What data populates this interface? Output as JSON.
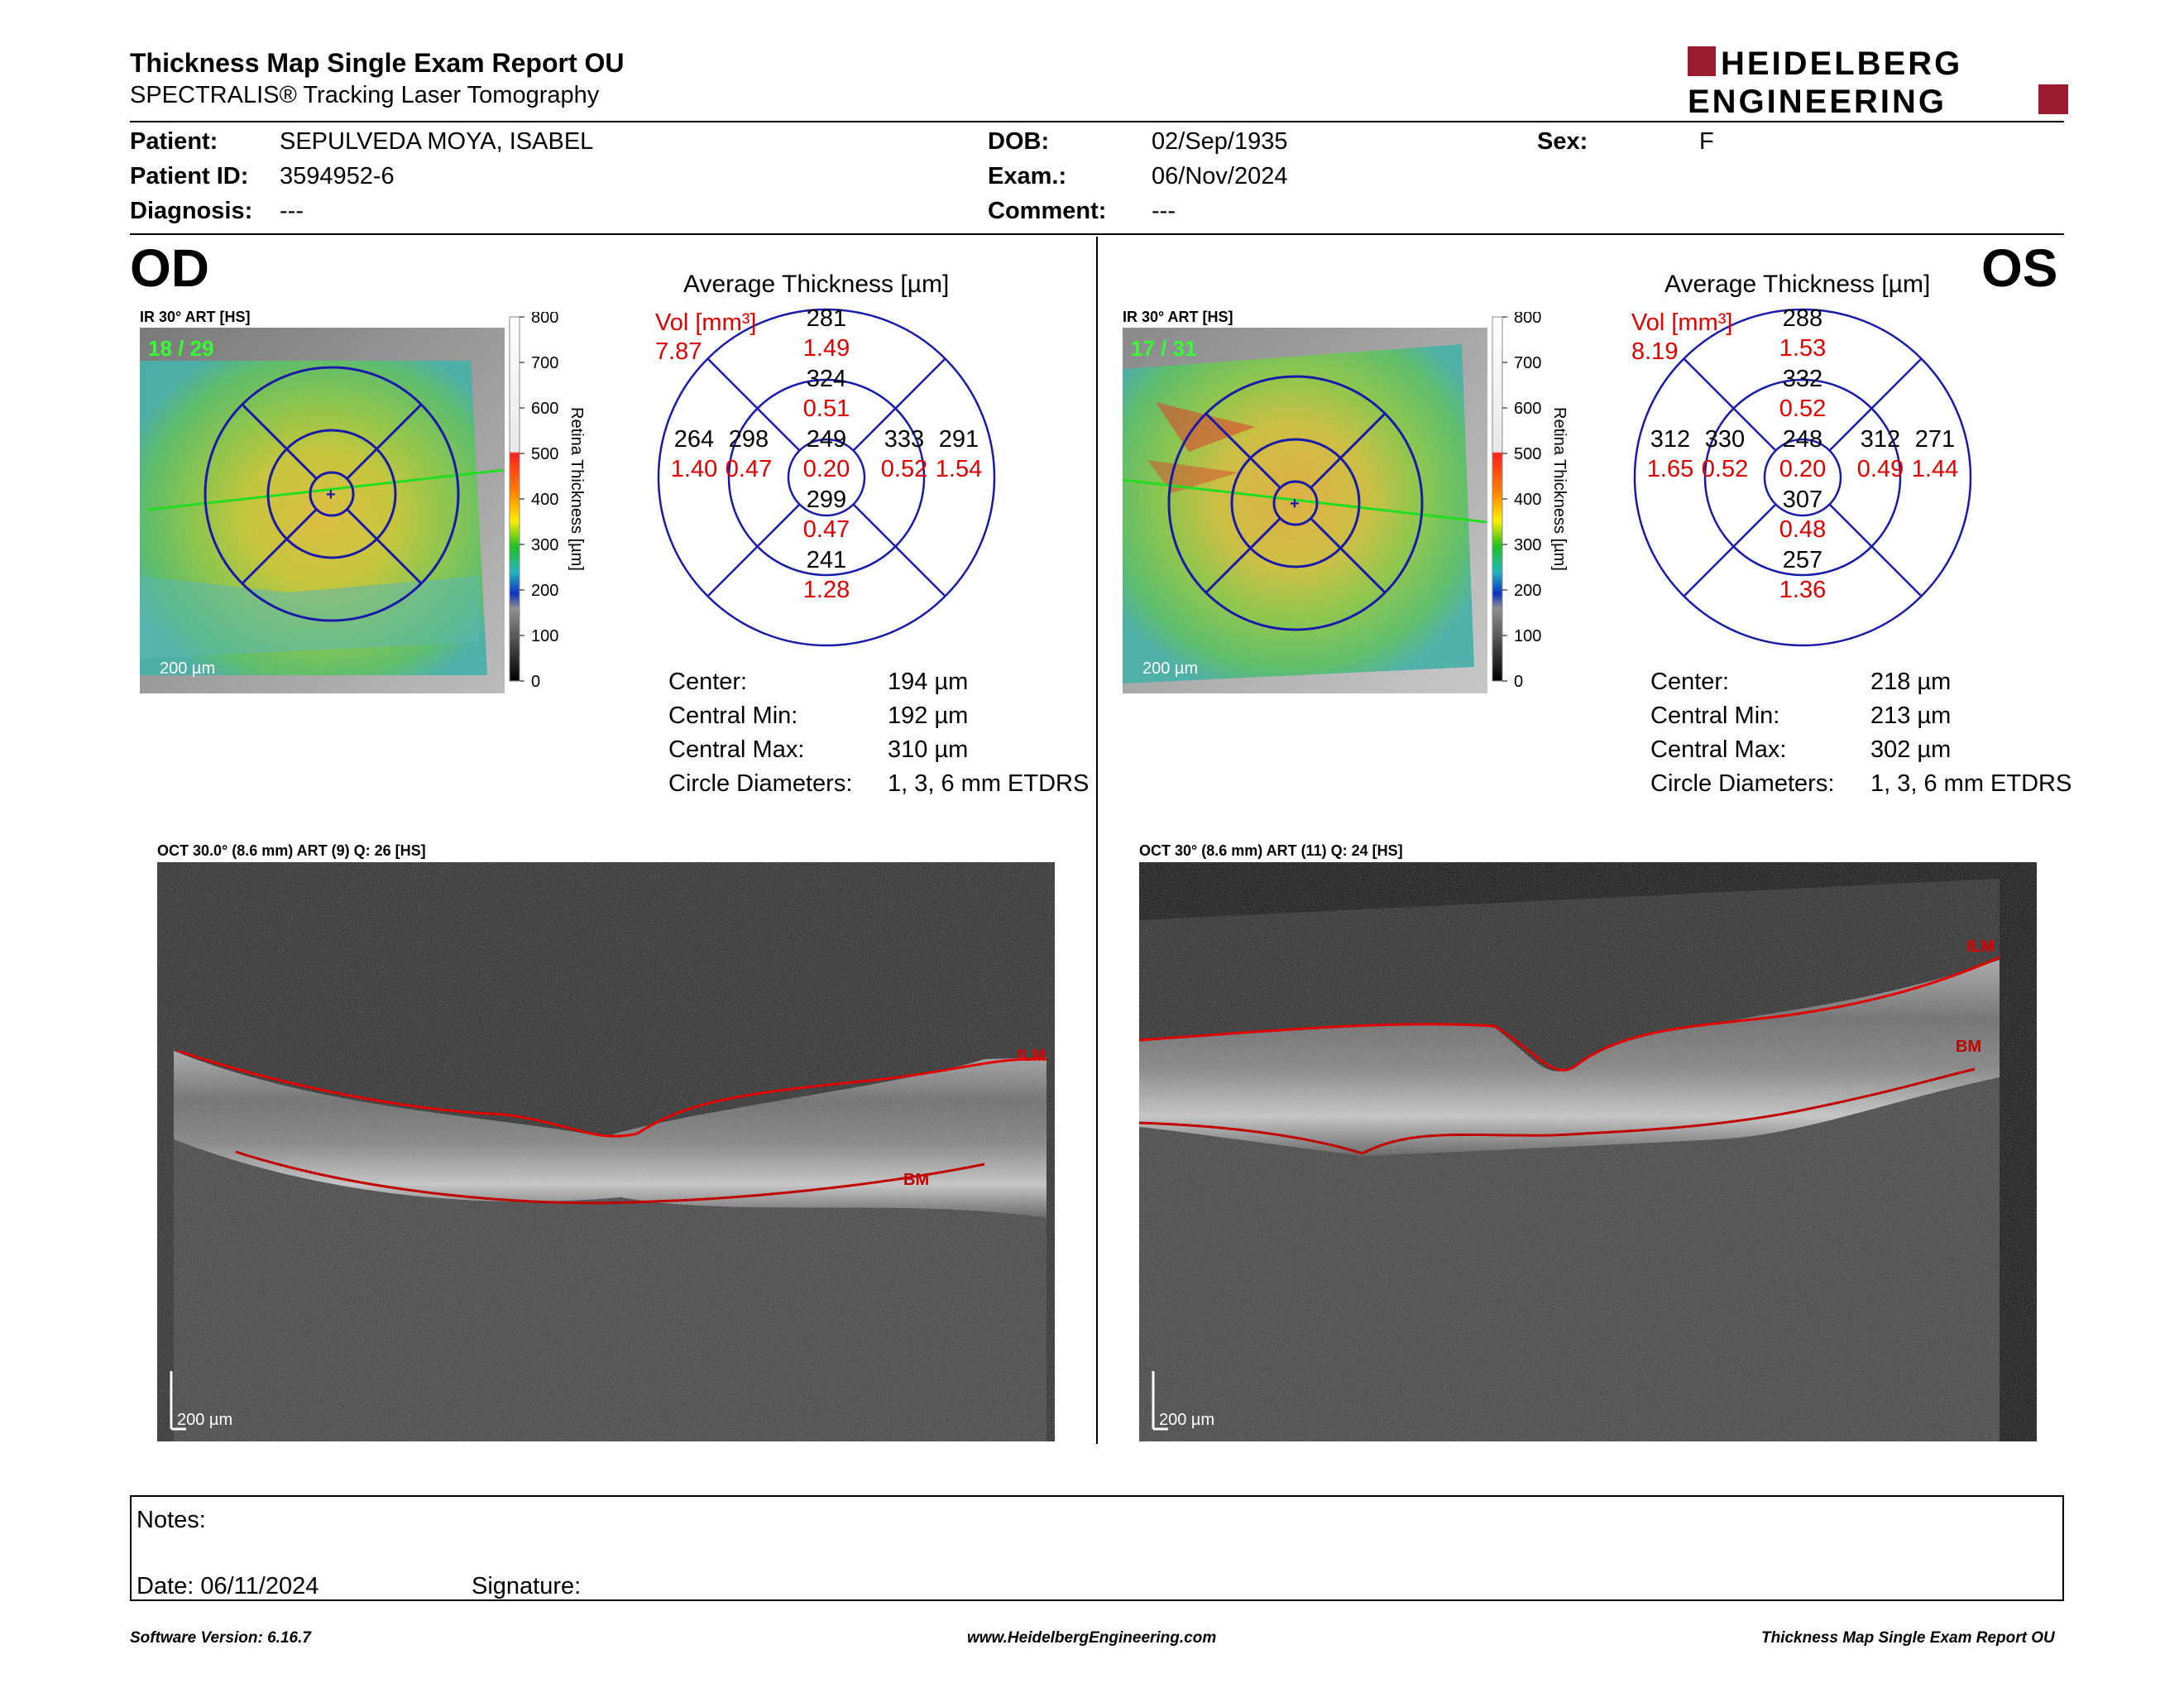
{
  "report": {
    "title": "Thickness Map Single Exam Report OU",
    "subtitle": "SPECTRALIS® Tracking Laser Tomography",
    "logo_line1": "HEIDELBERG",
    "logo_line2": "ENGINEERING",
    "brand_color": "#9b1b30"
  },
  "patient": {
    "patient_label": "Patient:",
    "patient_value": "SEPULVEDA MOYA, ISABEL",
    "id_label": "Patient ID:",
    "id_value": "3594952-6",
    "diagnosis_label": "Diagnosis:",
    "diagnosis_value": "---",
    "dob_label": "DOB:",
    "dob_value": "02/Sep/1935",
    "exam_label": "Exam.:",
    "exam_value": "06/Nov/2024",
    "comment_label": "Comment:",
    "comment_value": "---",
    "sex_label": "Sex:",
    "sex_value": "F"
  },
  "od": {
    "eye_label": "OD",
    "ir_label": "IR 30° ART [HS]",
    "frames": "18 / 29",
    "scale_bar": "200 µm",
    "avg_title": "Average Thickness [µm]",
    "vol_label": "Vol [mm³]",
    "vol_value": "7.87",
    "grid": {
      "center": {
        "t": "249",
        "v": "0.20"
      },
      "inner_sup": {
        "t": "324",
        "v": "0.51"
      },
      "inner_inf": {
        "t": "299",
        "v": "0.47"
      },
      "inner_left": {
        "t": "298",
        "v": "0.47"
      },
      "inner_right": {
        "t": "333",
        "v": "0.52"
      },
      "outer_sup": {
        "t": "281",
        "v": "1.49"
      },
      "outer_inf": {
        "t": "241",
        "v": "1.28"
      },
      "outer_left": {
        "t": "264",
        "v": "1.40"
      },
      "outer_right": {
        "t": "291",
        "v": "1.54"
      }
    },
    "stats": [
      {
        "label": "Center:",
        "value": "194 µm"
      },
      {
        "label": "Central Min:",
        "value": "192 µm"
      },
      {
        "label": "Central Max:",
        "value": "310 µm"
      },
      {
        "label": "Circle Diameters:",
        "value": "1, 3, 6 mm ETDRS"
      }
    ],
    "oct_label": "OCT 30.0° (8.6 mm) ART (9) Q: 26 [HS]",
    "ilm": "ILM",
    "bm": "BM"
  },
  "os": {
    "eye_label": "OS",
    "ir_label": "IR 30° ART [HS]",
    "frames": "17 / 31",
    "scale_bar": "200 µm",
    "avg_title": "Average Thickness [µm]",
    "vol_label": "Vol [mm³]",
    "vol_value": "8.19",
    "grid": {
      "center": {
        "t": "248",
        "v": "0.20"
      },
      "inner_sup": {
        "t": "332",
        "v": "0.52"
      },
      "inner_inf": {
        "t": "307",
        "v": "0.48"
      },
      "inner_left": {
        "t": "330",
        "v": "0.52"
      },
      "inner_right": {
        "t": "312",
        "v": "0.49"
      },
      "outer_sup": {
        "t": "288",
        "v": "1.53"
      },
      "outer_inf": {
        "t": "257",
        "v": "1.36"
      },
      "outer_left": {
        "t": "312",
        "v": "1.65"
      },
      "outer_right": {
        "t": "271",
        "v": "1.44"
      }
    },
    "stats": [
      {
        "label": "Center:",
        "value": "218 µm"
      },
      {
        "label": "Central Min:",
        "value": "213 µm"
      },
      {
        "label": "Central Max:",
        "value": "302 µm"
      },
      {
        "label": "Circle Diameters:",
        "value": "1, 3, 6 mm ETDRS"
      }
    ],
    "oct_label": "OCT 30° (8.6 mm) ART (11) Q: 24 [HS]",
    "ilm": "ILM",
    "bm": "BM"
  },
  "colorbar": {
    "ticks": [
      "800",
      "700",
      "600",
      "500",
      "400",
      "300",
      "200",
      "100",
      "0"
    ],
    "title": "Retina  Thickness [µm]"
  },
  "notes": {
    "notes_label": "Notes:",
    "date_label": "Date: 06/11/2024",
    "signature_label": "Signature:"
  },
  "footer": {
    "left": "Software Version: 6.16.7",
    "center": "www.HeidelbergEngineering.com",
    "right": "Thickness Map Single Exam Report OU"
  },
  "colors": {
    "red_text": "#e00000",
    "grid_blue": "#1a1aa8",
    "frame_green": "#33ff33"
  }
}
